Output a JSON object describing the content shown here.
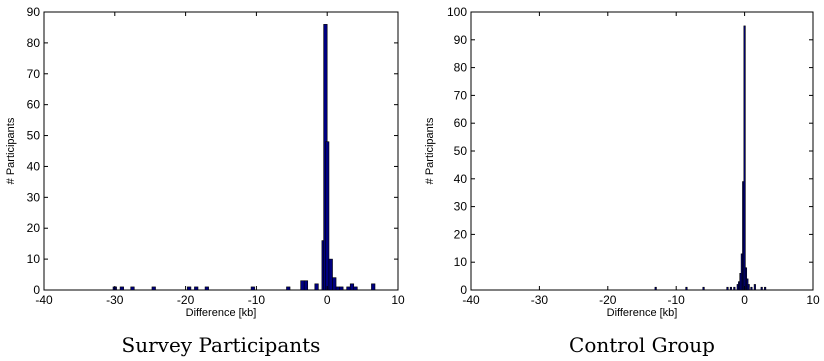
{
  "chart_data": [
    {
      "type": "bar",
      "caption": "Survey Participants",
      "xlabel": "Difference [kb]",
      "ylabel": "# Participants",
      "xlim": [
        -40,
        10
      ],
      "ylim": [
        0,
        90
      ],
      "xticks": [
        -40,
        -30,
        -20,
        -10,
        0,
        10
      ],
      "yticks": [
        0,
        10,
        20,
        30,
        40,
        50,
        60,
        70,
        80,
        90
      ],
      "grid": false,
      "bar_width": 0.5,
      "bar_color": "#000080",
      "bars": [
        {
          "x": -30.0,
          "y": 1
        },
        {
          "x": -29.0,
          "y": 1
        },
        {
          "x": -27.5,
          "y": 1
        },
        {
          "x": -24.5,
          "y": 1
        },
        {
          "x": -19.5,
          "y": 1
        },
        {
          "x": -18.5,
          "y": 1
        },
        {
          "x": -17.0,
          "y": 1
        },
        {
          "x": -10.5,
          "y": 1
        },
        {
          "x": -5.5,
          "y": 1
        },
        {
          "x": -3.5,
          "y": 3
        },
        {
          "x": -3.0,
          "y": 3
        },
        {
          "x": -1.5,
          "y": 2
        },
        {
          "x": -0.5,
          "y": 16
        },
        {
          "x": -0.25,
          "y": 86
        },
        {
          "x": 0.0,
          "y": 48
        },
        {
          "x": 0.5,
          "y": 10
        },
        {
          "x": 1.0,
          "y": 4
        },
        {
          "x": 1.5,
          "y": 1
        },
        {
          "x": 2.0,
          "y": 1
        },
        {
          "x": 3.0,
          "y": 1
        },
        {
          "x": 3.5,
          "y": 2
        },
        {
          "x": 4.0,
          "y": 1
        },
        {
          "x": 6.5,
          "y": 2
        }
      ]
    },
    {
      "type": "bar",
      "caption": "Control Group",
      "xlabel": "Difference [kb]",
      "ylabel": "# Participants",
      "xlim": [
        -40,
        10
      ],
      "ylim": [
        0,
        100
      ],
      "xticks": [
        -40,
        -30,
        -20,
        -10,
        0,
        10
      ],
      "yticks": [
        0,
        10,
        20,
        30,
        40,
        50,
        60,
        70,
        80,
        90,
        100
      ],
      "grid": false,
      "bar_width": 0.2,
      "bar_color": "#000080",
      "bars": [
        {
          "x": -13.0,
          "y": 1
        },
        {
          "x": -8.5,
          "y": 1
        },
        {
          "x": -6.0,
          "y": 1
        },
        {
          "x": -2.5,
          "y": 1
        },
        {
          "x": -2.0,
          "y": 1
        },
        {
          "x": -1.5,
          "y": 1
        },
        {
          "x": -1.0,
          "y": 2
        },
        {
          "x": -0.8,
          "y": 3
        },
        {
          "x": -0.6,
          "y": 6
        },
        {
          "x": -0.4,
          "y": 13
        },
        {
          "x": -0.2,
          "y": 39
        },
        {
          "x": 0.0,
          "y": 95
        },
        {
          "x": 0.2,
          "y": 8
        },
        {
          "x": 0.4,
          "y": 4
        },
        {
          "x": 0.6,
          "y": 2
        },
        {
          "x": 1.0,
          "y": 1
        },
        {
          "x": 1.5,
          "y": 2
        },
        {
          "x": 2.5,
          "y": 1
        },
        {
          "x": 3.0,
          "y": 1
        }
      ]
    }
  ]
}
